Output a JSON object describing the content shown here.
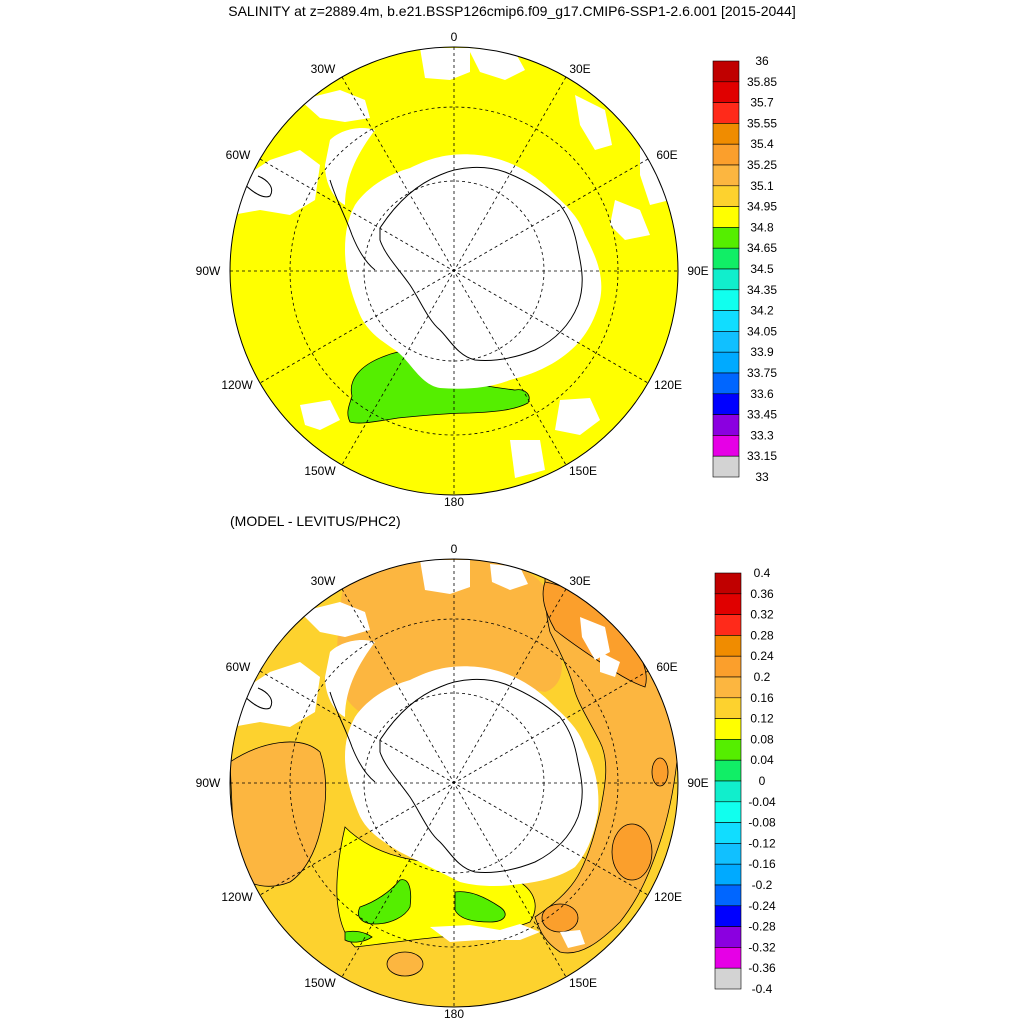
{
  "title": "SALINITY at z=2889.4m, b.e21.BSSP126cmip6.f09_g17.CMIP6-SSP1-2.6.001 [2015-2044]",
  "subtitle": "(MODEL - LEVITUS/PHC2)",
  "longitude_labels": [
    "0",
    "30E",
    "60E",
    "90E",
    "120E",
    "150E",
    "180",
    "150W",
    "120W",
    "90W",
    "60W",
    "30W"
  ],
  "colors": {
    "land": "#ffffff",
    "coastline": "#000000",
    "grid": "#000000"
  },
  "top_colorbar": {
    "labels": [
      "36",
      "35.85",
      "35.7",
      "35.55",
      "35.4",
      "35.25",
      "35.1",
      "34.95",
      "34.8",
      "34.65",
      "34.5",
      "34.35",
      "34.2",
      "34.05",
      "33.9",
      "33.75",
      "33.6",
      "33.45",
      "33.3",
      "33.15",
      "33"
    ],
    "colors": [
      "#c00000",
      "#e00000",
      "#ff2a1a",
      "#f08c00",
      "#fb9f2c",
      "#fcb640",
      "#fdd22e",
      "#ffff00",
      "#55ee00",
      "#11ee66",
      "#11eecc",
      "#11ffee",
      "#11ddff",
      "#11c0ff",
      "#00aaff",
      "#0066ff",
      "#0000ff",
      "#8b00e0",
      "#e600e6",
      "#d3d3d3",
      "#6e6e6e"
    ]
  },
  "bottom_colorbar": {
    "labels": [
      "0.4",
      "0.36",
      "0.32",
      "0.28",
      "0.24",
      "0.2",
      "0.16",
      "0.12",
      "0.08",
      "0.04",
      "0",
      "-0.04",
      "-0.08",
      "-0.12",
      "-0.16",
      "-0.2",
      "-0.24",
      "-0.28",
      "-0.32",
      "-0.36",
      "-0.4"
    ],
    "colors": [
      "#c00000",
      "#e00000",
      "#ff2a1a",
      "#f08c00",
      "#fb9f2c",
      "#fcb640",
      "#fdd22e",
      "#ffff00",
      "#55ee00",
      "#11ee66",
      "#11eecc",
      "#11ffee",
      "#11ddff",
      "#11c0ff",
      "#00aaff",
      "#0066ff",
      "#0000ff",
      "#8b00e0",
      "#e600e6",
      "#d3d3d3",
      "#6e6e6e"
    ]
  }
}
